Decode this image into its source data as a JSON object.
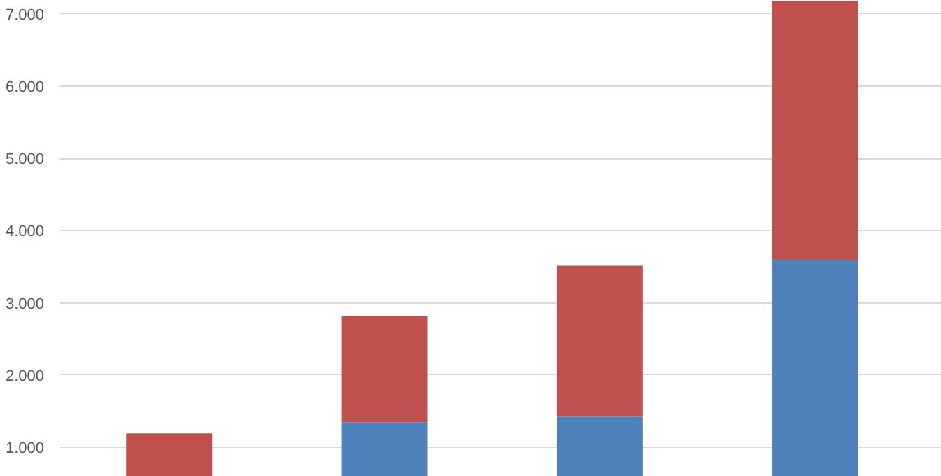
{
  "chart_data": {
    "type": "bar",
    "stacked": true,
    "categories": [
      null,
      null,
      null,
      null
    ],
    "series": [
      {
        "color": "#4f81bd",
        "values": [
          null,
          1348,
          1425,
          3592
        ]
      },
      {
        "color": "#c0504d",
        "values": [
          1193,
          1470,
          2090,
          3588
        ]
      }
    ],
    "ylim": [
      594,
      7180
    ],
    "yticks": [
      {
        "value": 1000,
        "label": "1.000"
      },
      {
        "value": 2000,
        "label": "2.000"
      },
      {
        "value": 3000,
        "label": "3.000"
      },
      {
        "value": 4000,
        "label": "4.000"
      },
      {
        "value": 5000,
        "label": "5.000"
      },
      {
        "value": 6000,
        "label": "6.000"
      },
      {
        "value": 7000,
        "label": "7.000"
      }
    ],
    "grid": "y"
  }
}
